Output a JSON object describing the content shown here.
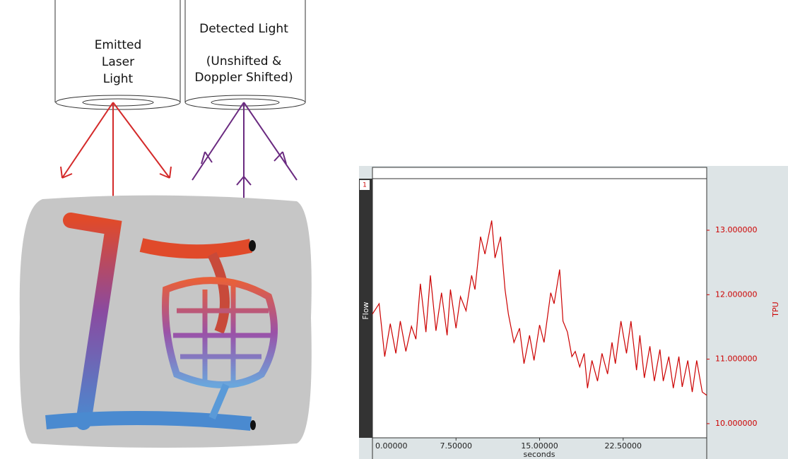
{
  "diagram": {
    "emitter_label": [
      "Emitted",
      "Laser",
      "Light"
    ],
    "detector_label": [
      "Detected Light",
      "(Unshifted &",
      "Doppler Shifted)"
    ]
  },
  "chart_data": {
    "type": "line",
    "panel_label": "1",
    "left_label": "Flow",
    "y_label": "TPU",
    "x_label": "seconds",
    "color": "#cc0000",
    "x": [
      0,
      0.6,
      1.1,
      1.6,
      2.1,
      2.5,
      3.0,
      3.5,
      3.9,
      4.3,
      4.8,
      5.2,
      5.7,
      6.2,
      6.7,
      7.0,
      7.5,
      7.9,
      8.4,
      8.9,
      9.2,
      9.7,
      10.1,
      10.7,
      11.0,
      11.5,
      11.9,
      12.2,
      12.7,
      13.2,
      13.6,
      14.1,
      14.5,
      15.0,
      15.4,
      16.0,
      16.3,
      16.8,
      17.1,
      17.5,
      17.9,
      18.2,
      18.6,
      19.0,
      19.3,
      19.7,
      20.2,
      20.6,
      21.1,
      21.5,
      21.8,
      22.3,
      22.8,
      23.2,
      23.7,
      24.0,
      24.4,
      24.9,
      25.3,
      25.8,
      26.1,
      26.6,
      27.0,
      27.5,
      27.8,
      28.3,
      28.7,
      29.1,
      29.6,
      30.0
    ],
    "values": [
      11.7,
      11.86,
      11.04,
      11.55,
      11.09,
      11.59,
      11.12,
      11.51,
      11.31,
      12.17,
      11.42,
      12.3,
      11.44,
      12.03,
      11.37,
      12.08,
      11.48,
      11.97,
      11.75,
      12.3,
      12.08,
      12.9,
      12.63,
      13.15,
      12.57,
      12.9,
      12.08,
      11.7,
      11.26,
      11.48,
      10.93,
      11.37,
      10.98,
      11.53,
      11.26,
      12.03,
      11.86,
      12.39,
      11.59,
      11.42,
      11.04,
      11.12,
      10.88,
      11.09,
      10.55,
      10.98,
      10.66,
      11.09,
      10.77,
      11.26,
      10.93,
      11.59,
      11.09,
      11.59,
      10.83,
      11.37,
      10.71,
      11.2,
      10.66,
      11.15,
      10.66,
      11.04,
      10.55,
      11.04,
      10.57,
      10.98,
      10.49,
      10.98,
      10.49,
      10.44
    ],
    "xlim": [
      0,
      30
    ],
    "ylim": [
      9.78,
      13.8
    ],
    "xticks": [
      {
        "value": 0,
        "label": "0.00000"
      },
      {
        "value": 7.5,
        "label": "7.50000"
      },
      {
        "value": 15,
        "label": "15.00000"
      },
      {
        "value": 22.5,
        "label": "22.50000"
      }
    ],
    "yticks": [
      {
        "value": 10,
        "label": "10.000000"
      },
      {
        "value": 11,
        "label": "11.000000"
      },
      {
        "value": 12,
        "label": "12.000000"
      },
      {
        "value": 13,
        "label": "13.000000"
      }
    ]
  }
}
